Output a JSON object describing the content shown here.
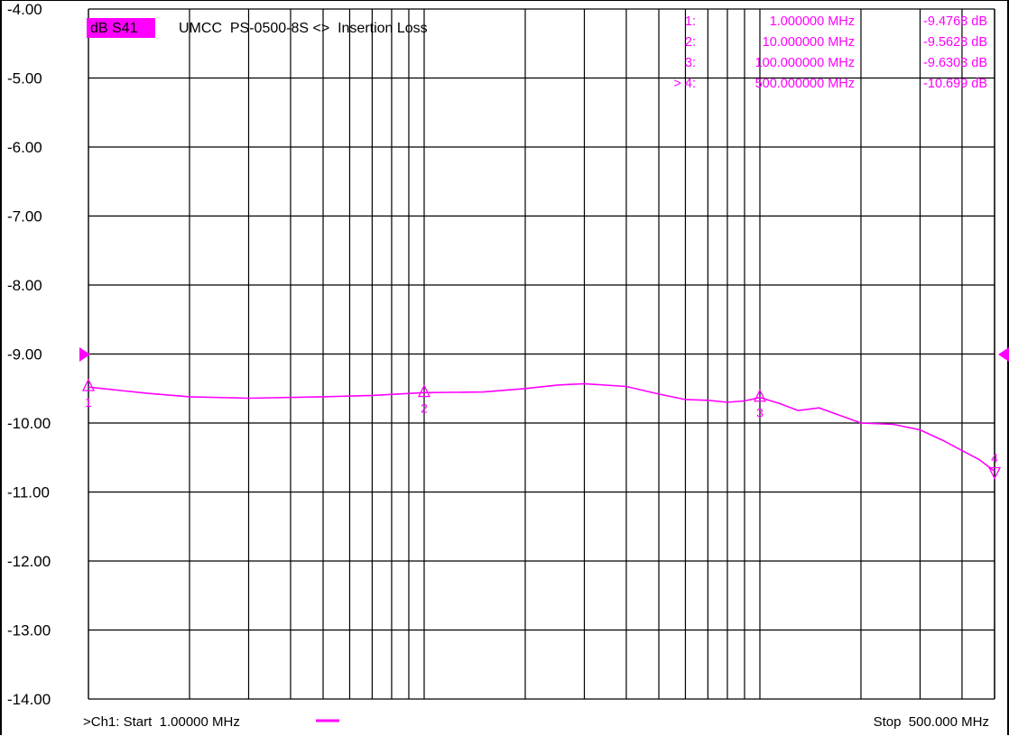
{
  "header": {
    "trace_format": "dB S41",
    "title": "UMCC  PS-0500-8S <>  Insertion Loss"
  },
  "markers": [
    {
      "id": "1:",
      "freq": "1.000000 MHz",
      "value": "-9.4768 dB"
    },
    {
      "id": "2:",
      "freq": "10.000000 MHz",
      "value": "-9.5628 dB"
    },
    {
      "id": "3:",
      "freq": "100.000000 MHz",
      "value": "-9.6303 dB"
    },
    {
      "id": "> 4:",
      "freq": "500.000000 MHz",
      "value": "-10.699 dB"
    }
  ],
  "footer": {
    "start": ">Ch1: Start  1.00000 MHz",
    "stop": "Stop  500.000 MHz"
  },
  "colors": {
    "trace": "#ff00ff",
    "grid": "#000000",
    "background": "#ffffff"
  },
  "chart_data": {
    "type": "line",
    "x_scale": "log",
    "xlim": [
      1,
      500
    ],
    "ylim": [
      -14,
      -4
    ],
    "yticks": [
      "-4.00",
      "-5.00",
      "-6.00",
      "-7.00",
      "-8.00",
      "-9.00",
      "-10.00",
      "-11.00",
      "-12.00",
      "-13.00",
      "-14.00"
    ],
    "reference_level": -9,
    "grid": true,
    "series": [
      {
        "x": [
          1,
          1.5,
          2,
          3,
          5,
          7,
          10,
          15,
          20,
          25,
          30,
          40,
          50,
          60,
          70,
          80,
          90,
          100,
          115,
          130,
          150,
          200,
          250,
          300,
          350,
          400,
          450,
          500
        ],
        "y": [
          -9.48,
          -9.57,
          -9.62,
          -9.64,
          -9.62,
          -9.6,
          -9.56,
          -9.55,
          -9.5,
          -9.45,
          -9.43,
          -9.47,
          -9.58,
          -9.66,
          -9.67,
          -9.7,
          -9.68,
          -9.63,
          -9.72,
          -9.82,
          -9.78,
          -10.0,
          -10.02,
          -10.1,
          -10.25,
          -10.4,
          -10.53,
          -10.7
        ]
      }
    ],
    "markers": [
      {
        "label": "1",
        "x": 1,
        "y": -9.4768
      },
      {
        "label": "2",
        "x": 10,
        "y": -9.5628
      },
      {
        "label": "3",
        "x": 100,
        "y": -9.6303
      },
      {
        "label": "4",
        "x": 500,
        "y": -10.699
      }
    ]
  }
}
